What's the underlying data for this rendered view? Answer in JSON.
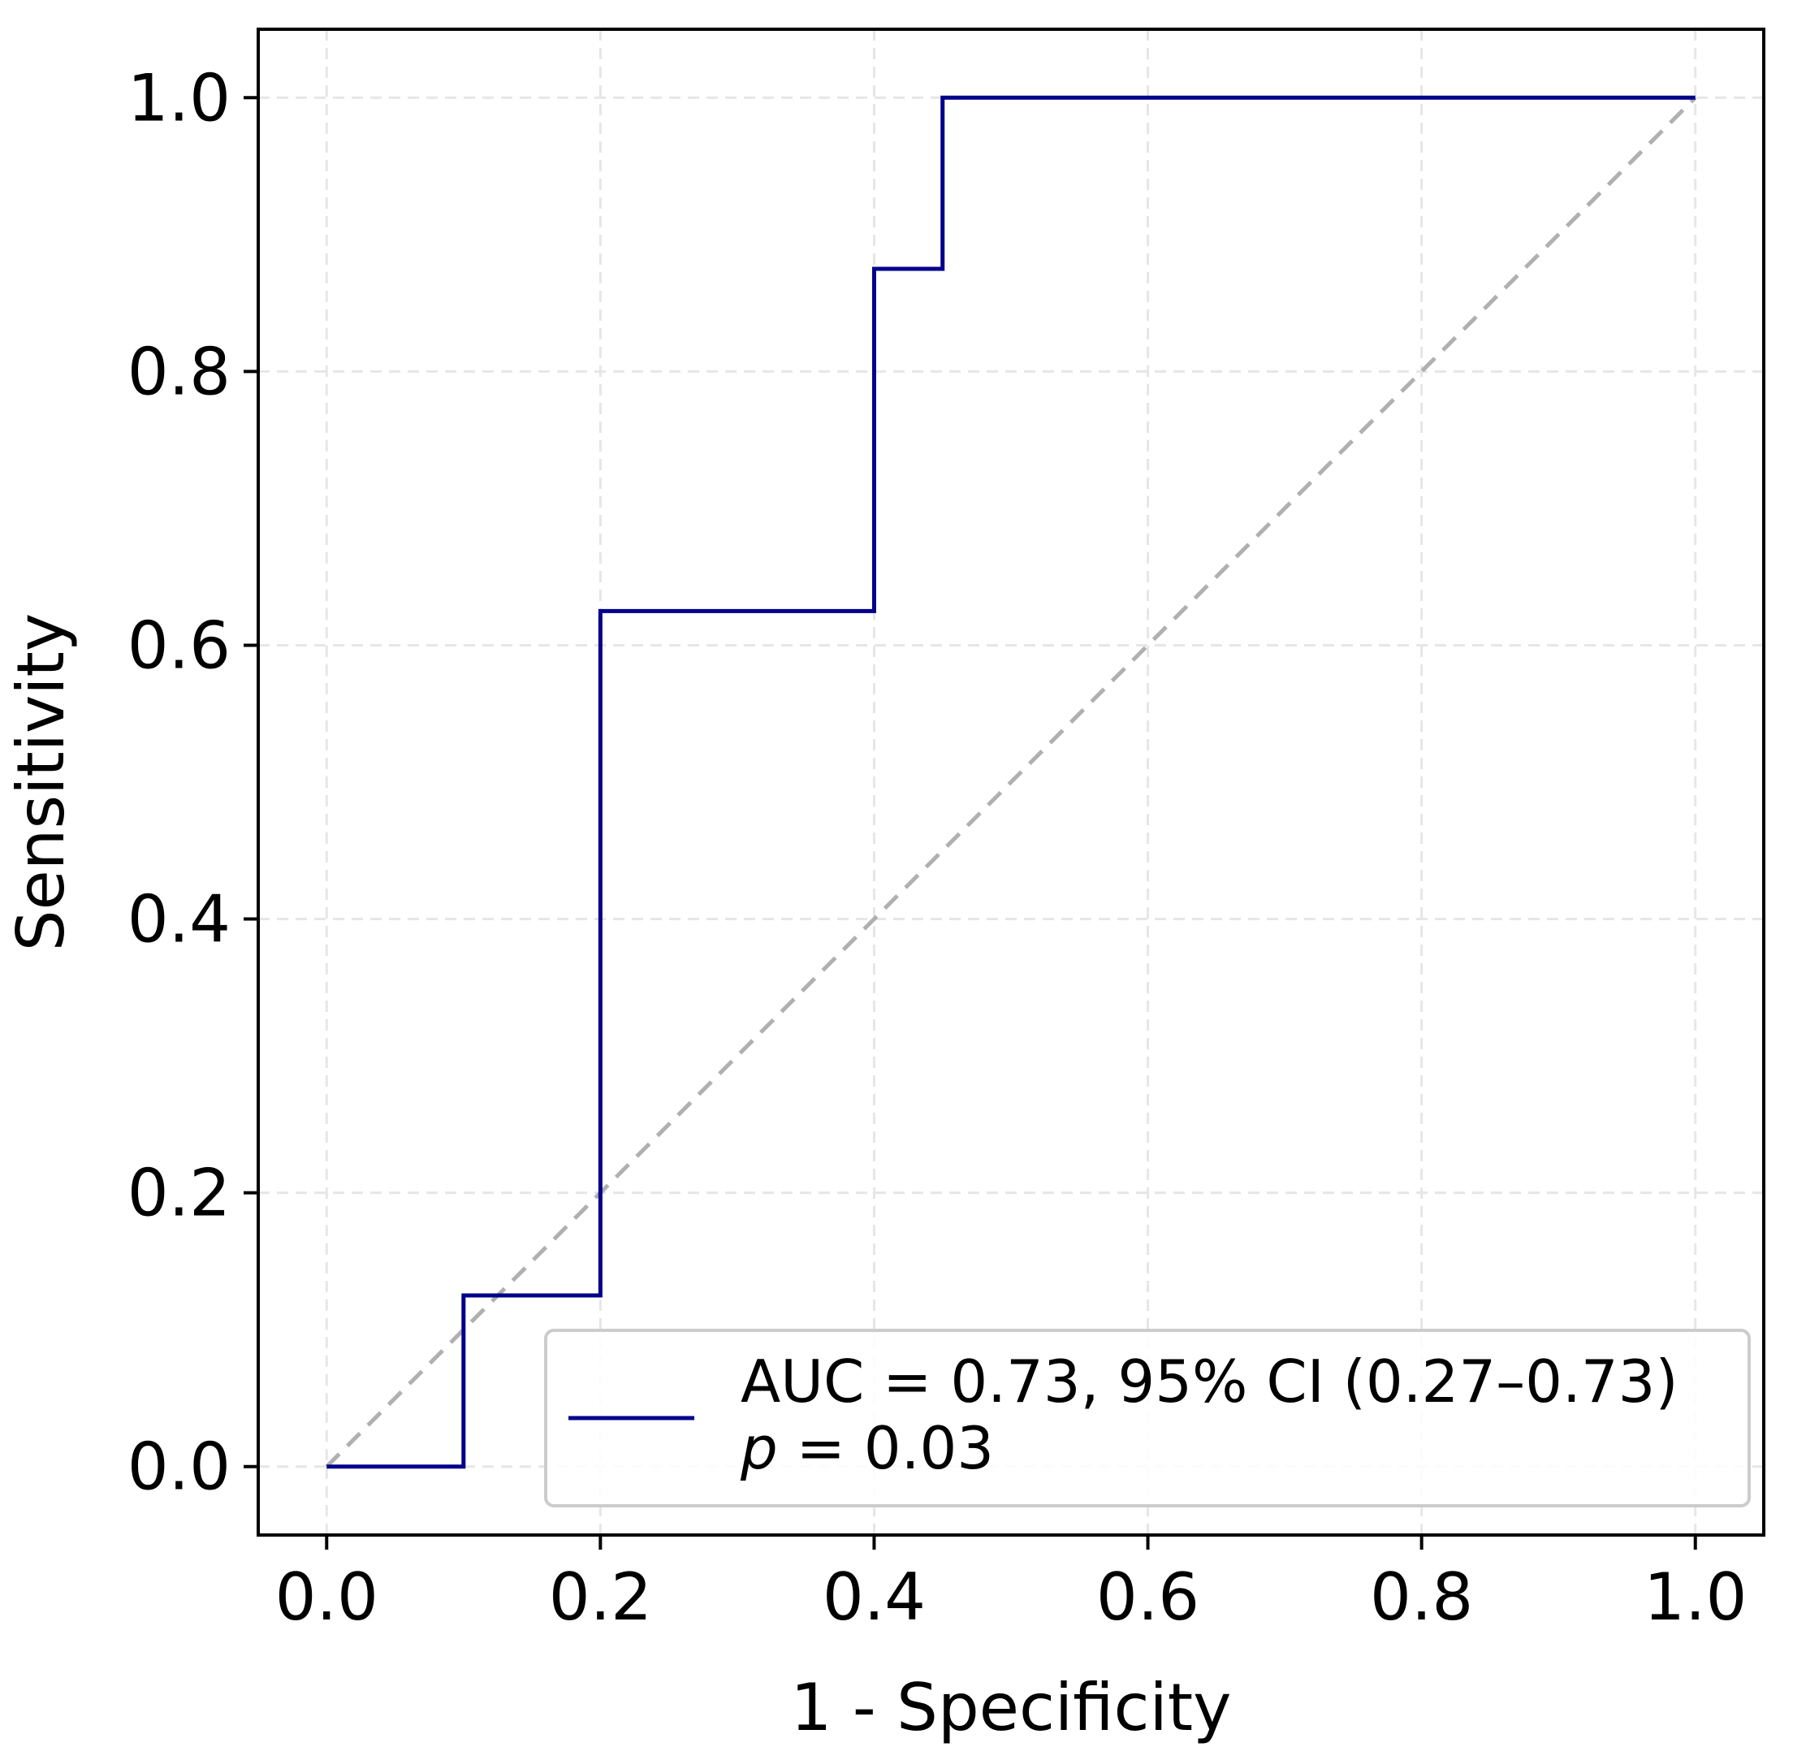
{
  "chart_data": {
    "type": "line",
    "xlabel": "1 - Specificity",
    "ylabel": "Sensitivity",
    "xlim": [
      -0.05,
      1.05
    ],
    "ylim": [
      -0.05,
      1.05
    ],
    "xticks": [
      0.0,
      0.2,
      0.4,
      0.6,
      0.8,
      1.0
    ],
    "xtick_labels": [
      "0.0",
      "0.2",
      "0.4",
      "0.6",
      "0.8",
      "1.0"
    ],
    "yticks": [
      0.0,
      0.2,
      0.4,
      0.6,
      0.8,
      1.0
    ],
    "ytick_labels": [
      "0.0",
      "0.2",
      "0.4",
      "0.6",
      "0.8",
      "1.0"
    ],
    "grid": true,
    "series": [
      {
        "name": "ROC curve",
        "style": "solid",
        "color": "#00008b",
        "x": [
          0.0,
          0.1,
          0.1,
          0.2,
          0.2,
          0.4,
          0.4,
          0.45,
          0.45,
          1.0
        ],
        "y": [
          0.0,
          0.0,
          0.125,
          0.125,
          0.625,
          0.625,
          0.875,
          0.875,
          1.0,
          1.0
        ]
      },
      {
        "name": "chance line",
        "style": "dashed",
        "color": "#b0b0b0",
        "x": [
          0.0,
          1.0
        ],
        "y": [
          0.0,
          1.0
        ]
      }
    ],
    "legend": {
      "placement": "lower-right",
      "line1": "AUC = 0.73, 95% CI (0.27–0.73)",
      "line2_italic": "p",
      "line2_rest": " = 0.03"
    }
  }
}
